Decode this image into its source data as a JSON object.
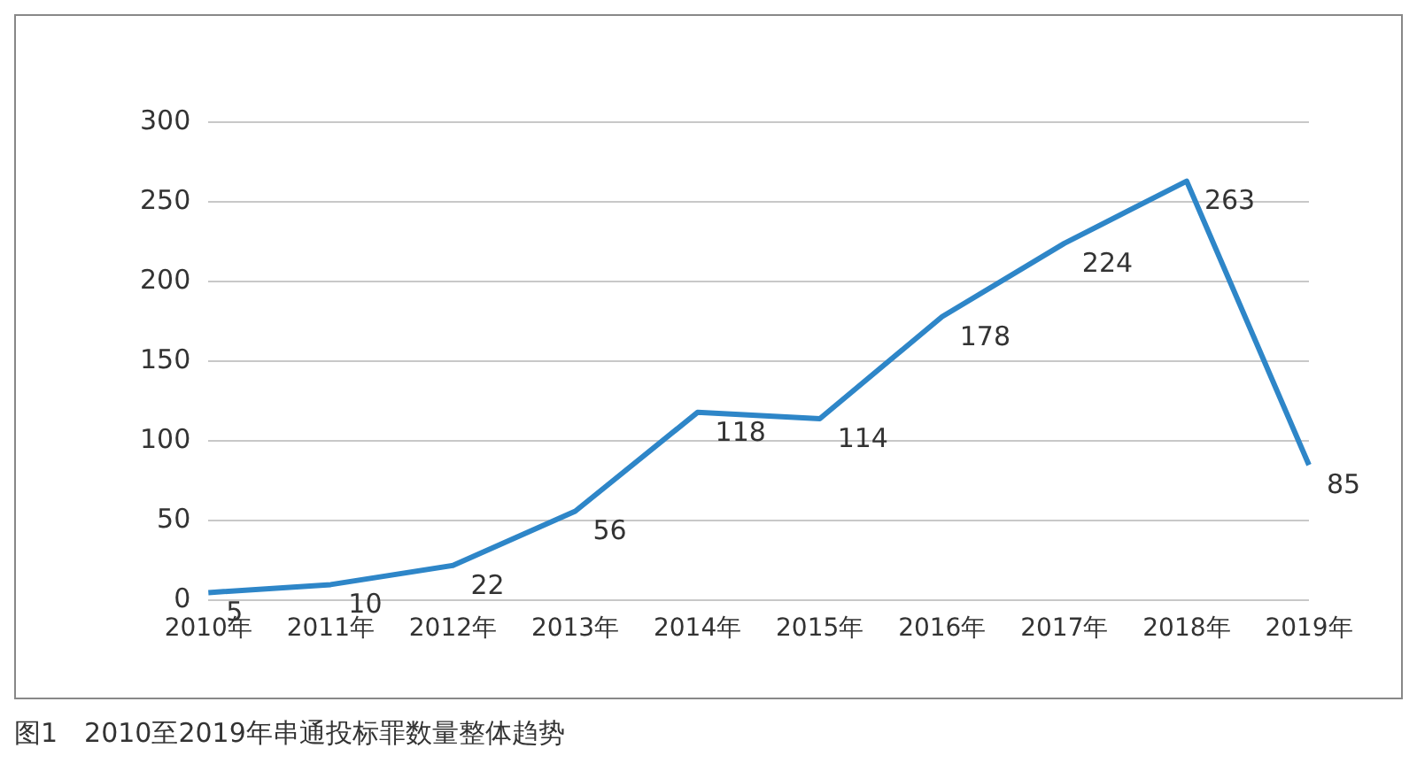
{
  "chart_data": {
    "type": "line",
    "categories": [
      "2010年",
      "2011年",
      "2012年",
      "2013年",
      "2014年",
      "2015年",
      "2016年",
      "2017年",
      "2018年",
      "2019年"
    ],
    "values": [
      5,
      10,
      22,
      56,
      118,
      114,
      178,
      224,
      263,
      85
    ],
    "color": "#2e86c8",
    "ylim": [
      0,
      300
    ],
    "yticks": [
      0,
      50,
      100,
      150,
      200,
      250,
      300
    ],
    "grid": "y",
    "legend": false,
    "marker": "none",
    "line_style": "solid",
    "data_labels": true,
    "annotations": [
      "图1　2010至2019年串通投标罪数量整体趋势"
    ]
  }
}
